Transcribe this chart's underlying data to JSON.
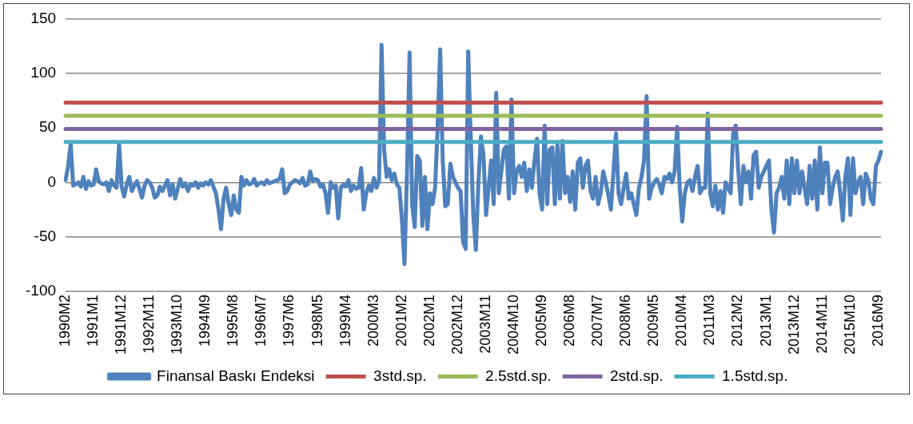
{
  "chart_data": {
    "type": "line",
    "categories": [
      "1990M2",
      null,
      null,
      null,
      null,
      null,
      null,
      null,
      null,
      null,
      null,
      "1991M1",
      null,
      null,
      null,
      null,
      null,
      null,
      null,
      null,
      null,
      null,
      "1991M12",
      null,
      null,
      null,
      null,
      null,
      null,
      null,
      null,
      null,
      null,
      "1992M11",
      null,
      null,
      null,
      null,
      null,
      null,
      null,
      null,
      null,
      null,
      "1993M10",
      null,
      null,
      null,
      null,
      null,
      null,
      null,
      null,
      null,
      null,
      "1994M9",
      null,
      null,
      null,
      null,
      null,
      null,
      null,
      null,
      null,
      null,
      "1995M8",
      null,
      null,
      null,
      null,
      null,
      null,
      null,
      null,
      null,
      null,
      "1996M7",
      null,
      null,
      null,
      null,
      null,
      null,
      null,
      null,
      null,
      null,
      "1997M6",
      null,
      null,
      null,
      null,
      null,
      null,
      null,
      null,
      null,
      null,
      "1998M5",
      null,
      null,
      null,
      null,
      null,
      null,
      null,
      null,
      null,
      null,
      "1999M4",
      null,
      null,
      null,
      null,
      null,
      null,
      null,
      null,
      null,
      null,
      "2000M3",
      null,
      null,
      null,
      null,
      null,
      null,
      null,
      null,
      null,
      null,
      "2001M2",
      null,
      null,
      null,
      null,
      null,
      null,
      null,
      null,
      null,
      null,
      "2002M1",
      null,
      null,
      null,
      null,
      null,
      null,
      null,
      null,
      null,
      null,
      "2002M12",
      null,
      null,
      null,
      null,
      null,
      null,
      null,
      null,
      null,
      null,
      "2003M11",
      null,
      null,
      null,
      null,
      null,
      null,
      null,
      null,
      null,
      null,
      "2004M10",
      null,
      null,
      null,
      null,
      null,
      null,
      null,
      null,
      null,
      null,
      "2005M9",
      null,
      null,
      null,
      null,
      null,
      null,
      null,
      null,
      null,
      null,
      "2006M8",
      null,
      null,
      null,
      null,
      null,
      null,
      null,
      null,
      null,
      null,
      "2007M7",
      null,
      null,
      null,
      null,
      null,
      null,
      null,
      null,
      null,
      null,
      "2008M6",
      null,
      null,
      null,
      null,
      null,
      null,
      null,
      null,
      null,
      null,
      "2009M5",
      null,
      null,
      null,
      null,
      null,
      null,
      null,
      null,
      null,
      null,
      "2010M4",
      null,
      null,
      null,
      null,
      null,
      null,
      null,
      null,
      null,
      null,
      "2011M3",
      null,
      null,
      null,
      null,
      null,
      null,
      null,
      null,
      null,
      null,
      "2012M2",
      null,
      null,
      null,
      null,
      null,
      null,
      null,
      null,
      null,
      null,
      "2013M1",
      null,
      null,
      null,
      null,
      null,
      null,
      null,
      null,
      null,
      null,
      "2013M12",
      null,
      null,
      null,
      null,
      null,
      null,
      null,
      null,
      null,
      null,
      "2014M11",
      null,
      null,
      null,
      null,
      null,
      null,
      null,
      null,
      null,
      null,
      "2015M10",
      null,
      null,
      null,
      null,
      null,
      null,
      null,
      null,
      null,
      null,
      "2016M9",
      null
    ],
    "series": [
      {
        "name": "Finansal Baskı Endeksi",
        "color": "#4f81bd",
        "values": [
          2,
          15,
          35,
          -3,
          -2,
          0,
          -4,
          5,
          -6,
          1,
          -3,
          -2,
          12,
          1,
          -1,
          -2,
          0,
          -8,
          2,
          -3,
          -5,
          35,
          -4,
          -13,
          -2,
          5,
          -8,
          -3,
          1,
          -6,
          -14,
          -3,
          2,
          0,
          -5,
          -14,
          -12,
          -4,
          -8,
          -3,
          2,
          -12,
          -2,
          -15,
          -6,
          3,
          -4,
          -1,
          -8,
          -2,
          -3,
          0,
          -5,
          -1,
          -3,
          0,
          -2,
          2,
          -4,
          -10,
          -25,
          -43,
          -15,
          -5,
          -20,
          -30,
          -12,
          -25,
          -28,
          5,
          -3,
          2,
          -2,
          -1,
          3,
          -3,
          -1,
          0,
          -2,
          2,
          -1,
          0,
          1,
          2,
          3,
          12,
          -10,
          -8,
          -2,
          0,
          2,
          1,
          -1,
          4,
          -3,
          -2,
          10,
          1,
          3,
          2,
          -4,
          -2,
          -10,
          -28,
          0,
          -5,
          -3,
          -33,
          -5,
          -2,
          -4,
          2,
          -8,
          -3,
          -6,
          -5,
          13,
          -25,
          -10,
          -3,
          -8,
          4,
          -5,
          1,
          126,
          30,
          5,
          12,
          2,
          8,
          -2,
          -5,
          -35,
          -75,
          10,
          119,
          -20,
          -41,
          24,
          20,
          -40,
          5,
          -43,
          -10,
          -20,
          -5,
          50,
          122,
          20,
          -22,
          -20,
          17,
          5,
          0,
          -5,
          -8,
          -55,
          -61,
          120,
          40,
          -30,
          -62,
          0,
          42,
          25,
          -30,
          -5,
          20,
          -20,
          82,
          -10,
          10,
          30,
          33,
          -15,
          76,
          -10,
          10,
          15,
          5,
          18,
          -8,
          12,
          -5,
          20,
          40,
          -10,
          -25,
          52,
          -20,
          30,
          32,
          -20,
          35,
          -15,
          38,
          -10,
          5,
          -18,
          10,
          -25,
          18,
          22,
          -5,
          15,
          20,
          -8,
          -15,
          5,
          -20,
          -10,
          10,
          0,
          -12,
          -25,
          10,
          45,
          -10,
          -20,
          -5,
          8,
          -15,
          -10,
          -20,
          -30,
          -5,
          5,
          20,
          79,
          -15,
          -5,
          0,
          3,
          -2,
          -10,
          5,
          3,
          8,
          0,
          10,
          51,
          -5,
          -36,
          -10,
          0,
          2,
          -8,
          5,
          15,
          -10,
          -5,
          -5,
          63,
          -10,
          -22,
          -3,
          -25,
          -8,
          -28,
          0,
          -5,
          -10,
          45,
          52,
          10,
          -20,
          15,
          0,
          10,
          -15,
          25,
          28,
          -5,
          5,
          10,
          15,
          20,
          -25,
          -46,
          -10,
          -5,
          5,
          -15,
          20,
          -20,
          22,
          -10,
          20,
          -10,
          10,
          -5,
          -20,
          15,
          -15,
          20,
          -25,
          32,
          -10,
          18,
          18,
          -20,
          -5,
          5,
          10,
          -10,
          -35,
          5,
          22,
          -30,
          22,
          -10,
          0,
          5,
          -20,
          8,
          2,
          -15,
          -20,
          15,
          20,
          28
        ]
      }
    ],
    "ref_lines": [
      {
        "axis": "y",
        "value": 73,
        "label": "3std.sp.",
        "color": "#c0504d"
      },
      {
        "axis": "y",
        "value": 61,
        "label": "2.5std.sp.",
        "color": "#9bbb59"
      },
      {
        "axis": "y",
        "value": 49,
        "label": "2std.sp.",
        "color": "#8064a2"
      },
      {
        "axis": "y",
        "value": 37,
        "label": "1.5std.sp.",
        "color": "#4bacc6"
      }
    ],
    "ylim": [
      -100,
      150
    ],
    "yticks": [
      -100,
      -50,
      0,
      50,
      100,
      150
    ],
    "grid": "y",
    "legend": "bottom",
    "marker": "none",
    "line_style": "solid"
  }
}
